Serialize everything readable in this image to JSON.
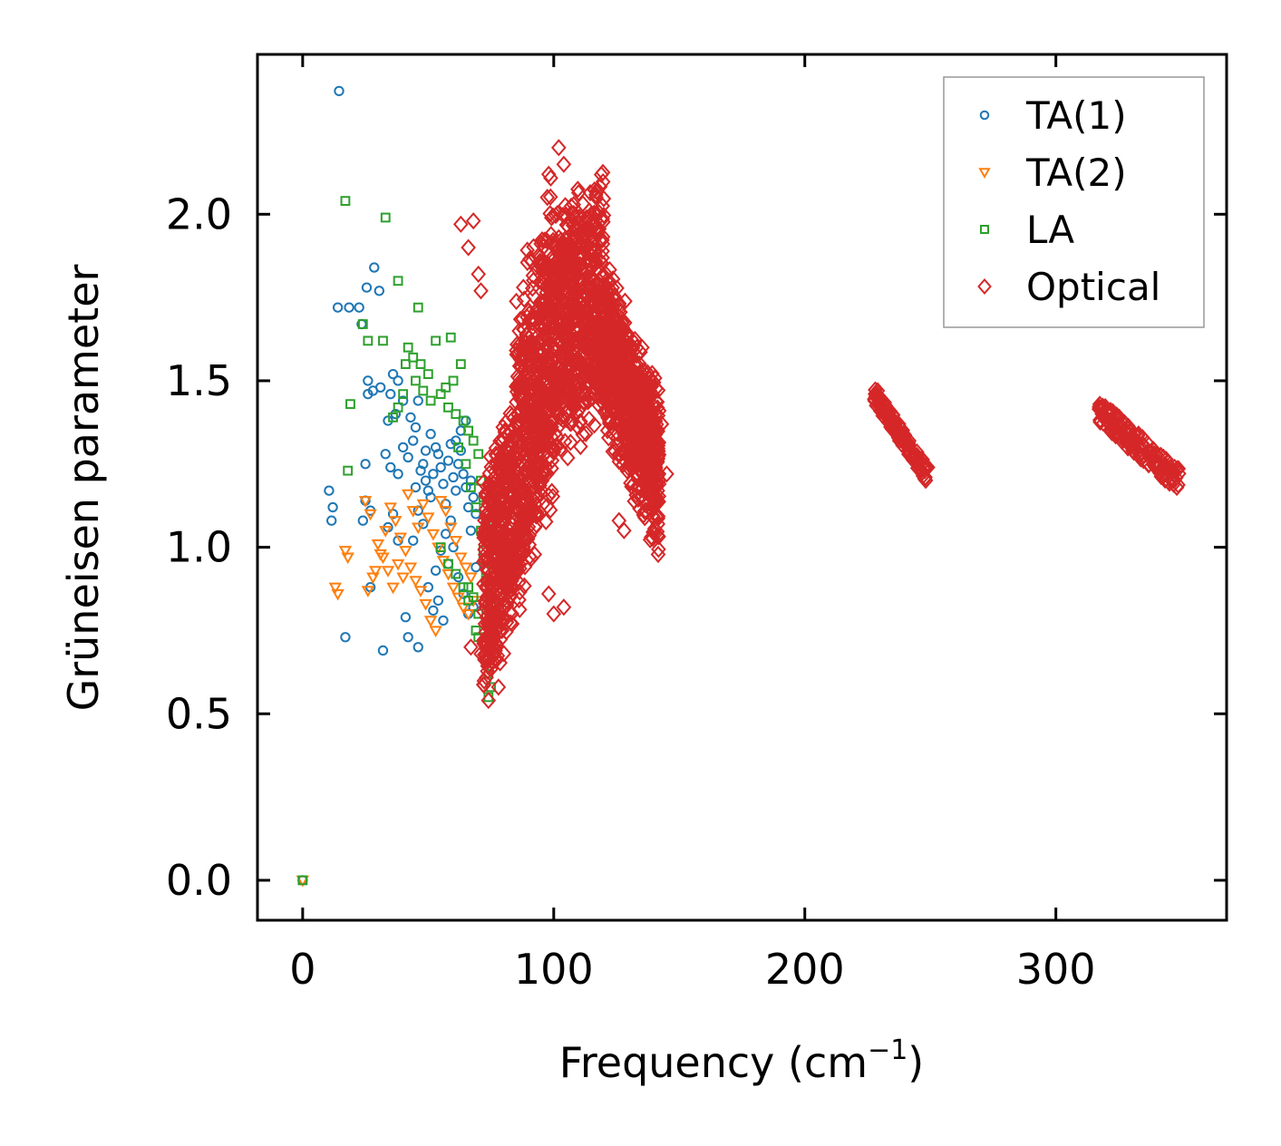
{
  "chart_data": {
    "type": "scatter",
    "xlabel": "Frequency (cm",
    "xlabel_superscript": "−1",
    "xlabel_suffix": ")",
    "ylabel": "Grüneisen parameter",
    "xlim": [
      -18,
      368
    ],
    "ylim": [
      -0.12,
      2.48
    ],
    "xticks": [
      0,
      100,
      200,
      300
    ],
    "xtick_labels": [
      "0",
      "100",
      "200",
      "300"
    ],
    "yticks": [
      0.0,
      0.5,
      1.0,
      1.5,
      2.0
    ],
    "ytick_labels": [
      "0.0",
      "0.5",
      "1.0",
      "1.5",
      "2.0"
    ],
    "grid": false,
    "legend_position": "top-right",
    "series": [
      {
        "name": "TA(1)",
        "marker": "circle",
        "color": "#1f77b4",
        "points": [
          [
            0,
            0.0
          ],
          [
            14.5,
            2.37
          ],
          [
            10.5,
            1.17
          ],
          [
            12,
            1.12
          ],
          [
            11.5,
            1.08
          ],
          [
            14,
            1.72
          ],
          [
            18.5,
            1.72
          ],
          [
            22.5,
            1.72
          ],
          [
            25.5,
            1.78
          ],
          [
            28.5,
            1.84
          ],
          [
            30.5,
            1.77
          ],
          [
            23.5,
            1.67
          ],
          [
            26,
            1.5
          ],
          [
            31,
            1.48
          ],
          [
            25,
            1.25
          ],
          [
            26,
            1.46
          ],
          [
            28,
            1.47
          ],
          [
            25,
            1.14
          ],
          [
            27,
            1.11
          ],
          [
            24,
            1.08
          ],
          [
            17,
            0.73
          ],
          [
            32,
            0.69
          ],
          [
            27,
            0.88
          ],
          [
            34,
            1.06
          ],
          [
            36,
            1.1
          ],
          [
            38,
            1.02
          ],
          [
            41,
            0.79
          ],
          [
            46,
            0.7
          ],
          [
            42,
            0.73
          ],
          [
            36,
            1.52
          ],
          [
            38,
            1.5
          ],
          [
            40,
            1.44
          ],
          [
            35,
            1.46
          ],
          [
            37,
            1.4
          ],
          [
            34,
            1.38
          ],
          [
            33,
            1.28
          ],
          [
            35,
            1.24
          ],
          [
            38,
            1.22
          ],
          [
            40,
            1.3
          ],
          [
            42,
            1.27
          ],
          [
            44,
            1.32
          ],
          [
            45,
            1.36
          ],
          [
            43,
            1.39
          ],
          [
            46,
            1.44
          ],
          [
            48,
            1.25
          ],
          [
            49,
            1.2
          ],
          [
            50,
            1.17
          ],
          [
            51,
            1.15
          ],
          [
            52,
            1.22
          ],
          [
            53,
            1.3
          ],
          [
            54,
            1.28
          ],
          [
            55,
            1.24
          ],
          [
            56,
            1.19
          ],
          [
            57,
            1.13
          ],
          [
            58,
            1.26
          ],
          [
            59,
            1.31
          ],
          [
            60,
            1.21
          ],
          [
            61,
            1.17
          ],
          [
            62,
            1.25
          ],
          [
            63,
            1.29
          ],
          [
            64,
            1.22
          ],
          [
            65,
            1.18
          ],
          [
            66,
            1.12
          ],
          [
            67,
            1.05
          ],
          [
            63,
            1.35
          ],
          [
            65,
            1.38
          ],
          [
            61,
            1.32
          ],
          [
            59,
            1.08
          ],
          [
            57,
            1.04
          ],
          [
            55,
            0.99
          ],
          [
            53,
            0.93
          ],
          [
            50,
            0.88
          ],
          [
            52,
            0.81
          ],
          [
            54,
            0.84
          ],
          [
            56,
            0.78
          ],
          [
            58,
            0.95
          ],
          [
            60,
            1.0
          ],
          [
            62,
            0.91
          ],
          [
            64,
            0.86
          ],
          [
            66,
            0.8
          ],
          [
            68,
            0.82
          ],
          [
            69,
            0.94
          ],
          [
            48,
            1.07
          ],
          [
            46,
            1.11
          ],
          [
            44,
            1.02
          ],
          [
            45,
            1.18
          ],
          [
            47,
            1.23
          ],
          [
            49,
            1.29
          ],
          [
            51,
            1.34
          ],
          [
            67,
            1.2
          ],
          [
            68,
            1.15
          ],
          [
            69,
            1.1
          ]
        ]
      },
      {
        "name": "TA(2)",
        "marker": "triangle-down",
        "color": "#ff7f0e",
        "points": [
          [
            0,
            0.0
          ],
          [
            13,
            0.88
          ],
          [
            14,
            0.86
          ],
          [
            17,
            0.99
          ],
          [
            18,
            0.97
          ],
          [
            25,
            1.14
          ],
          [
            27,
            1.1
          ],
          [
            29,
            0.93
          ],
          [
            28,
            0.91
          ],
          [
            26,
            0.87
          ],
          [
            31,
            0.98
          ],
          [
            33,
            1.05
          ],
          [
            35,
            1.12
          ],
          [
            37,
            1.08
          ],
          [
            39,
            1.03
          ],
          [
            41,
            0.99
          ],
          [
            43,
            0.94
          ],
          [
            45,
            0.9
          ],
          [
            47,
            0.87
          ],
          [
            49,
            0.83
          ],
          [
            51,
            0.78
          ],
          [
            53,
            0.75
          ],
          [
            48,
            1.13
          ],
          [
            50,
            1.09
          ],
          [
            52,
            1.04
          ],
          [
            54,
            1.0
          ],
          [
            56,
            0.96
          ],
          [
            58,
            0.92
          ],
          [
            60,
            0.88
          ],
          [
            62,
            0.85
          ],
          [
            64,
            0.82
          ],
          [
            66,
            0.8
          ],
          [
            55,
            1.14
          ],
          [
            57,
            1.11
          ],
          [
            59,
            1.06
          ],
          [
            61,
            1.02
          ],
          [
            63,
            0.97
          ],
          [
            65,
            0.94
          ],
          [
            67,
            0.91
          ],
          [
            42,
            1.16
          ],
          [
            44,
            1.11
          ],
          [
            46,
            1.06
          ],
          [
            38,
            0.95
          ],
          [
            40,
            0.91
          ],
          [
            36,
            0.88
          ],
          [
            34,
            0.93
          ],
          [
            32,
            0.97
          ],
          [
            30,
            1.01
          ],
          [
            68,
            0.84
          ]
        ]
      },
      {
        "name": "LA",
        "marker": "square",
        "color": "#2ca02c",
        "points": [
          [
            0,
            0.0
          ],
          [
            17,
            2.04
          ],
          [
            33,
            1.99
          ],
          [
            38,
            1.8
          ],
          [
            46,
            1.72
          ],
          [
            24,
            1.67
          ],
          [
            26,
            1.62
          ],
          [
            32,
            1.62
          ],
          [
            19,
            1.43
          ],
          [
            18,
            1.23
          ],
          [
            42,
            1.6
          ],
          [
            44,
            1.57
          ],
          [
            47,
            1.55
          ],
          [
            50,
            1.52
          ],
          [
            53,
            1.62
          ],
          [
            59,
            1.63
          ],
          [
            41,
            1.55
          ],
          [
            45,
            1.5
          ],
          [
            48,
            1.47
          ],
          [
            51,
            1.44
          ],
          [
            55,
            1.46
          ],
          [
            58,
            1.42
          ],
          [
            61,
            1.4
          ],
          [
            64,
            1.38
          ],
          [
            66,
            1.35
          ],
          [
            68,
            1.32
          ],
          [
            70,
            1.28
          ],
          [
            71,
            1.2
          ],
          [
            72,
            1.15
          ],
          [
            73,
            1.08
          ],
          [
            74,
            1.02
          ],
          [
            72,
            0.96
          ],
          [
            73,
            0.9
          ],
          [
            74,
            0.86
          ],
          [
            75,
            0.83
          ],
          [
            74,
            0.62
          ],
          [
            75,
            0.58
          ],
          [
            74,
            0.55
          ],
          [
            69,
            0.75
          ],
          [
            70,
            0.73
          ],
          [
            63,
            1.55
          ],
          [
            60,
            1.5
          ],
          [
            57,
            1.48
          ],
          [
            62,
            1.3
          ],
          [
            65,
            1.25
          ],
          [
            67,
            1.18
          ],
          [
            69,
            1.12
          ],
          [
            71,
            1.05
          ],
          [
            72,
            0.99
          ],
          [
            73,
            0.93
          ],
          [
            70,
            0.8
          ],
          [
            68,
            0.85
          ],
          [
            66,
            0.88
          ],
          [
            38,
            1.42
          ],
          [
            40,
            1.46
          ],
          [
            36,
            1.39
          ],
          [
            55,
            1.0
          ],
          [
            58,
            0.95
          ],
          [
            61,
            0.92
          ],
          [
            64,
            0.88
          ],
          [
            66,
            0.84
          ]
        ]
      },
      {
        "name": "Optical",
        "marker": "diamond",
        "color": "#d62728",
        "generated": true,
        "clusters": [
          {
            "x": [
              65,
              150
            ],
            "y": [
              0.54,
              2.2
            ]
          },
          {
            "x": [
              226,
              250
            ],
            "y": [
              1.2,
              1.48
            ]
          },
          {
            "x": [
              316,
              350
            ],
            "y": [
              1.18,
              1.43
            ]
          }
        ],
        "points": [
          [
            63,
            1.97
          ],
          [
            68,
            1.98
          ],
          [
            102,
            2.2
          ],
          [
            98,
            2.12
          ],
          [
            104,
            2.15
          ],
          [
            66,
            1.9
          ],
          [
            70,
            1.82
          ],
          [
            71,
            1.77
          ],
          [
            67,
            0.7
          ],
          [
            71,
            0.68
          ],
          [
            74,
            0.54
          ],
          [
            77,
            0.66
          ],
          [
            78,
            0.58
          ],
          [
            100,
            0.8
          ],
          [
            104,
            0.82
          ],
          [
            98,
            0.86
          ],
          [
            126,
            1.08
          ],
          [
            128,
            1.05
          ],
          [
            143,
            1.37
          ],
          [
            142,
            1.19
          ],
          [
            145,
            1.22
          ],
          [
            228,
            1.46
          ],
          [
            229,
            1.47
          ],
          [
            248,
            1.21
          ],
          [
            249,
            1.24
          ],
          [
            318,
            1.41
          ],
          [
            347,
            1.2
          ]
        ]
      }
    ]
  }
}
